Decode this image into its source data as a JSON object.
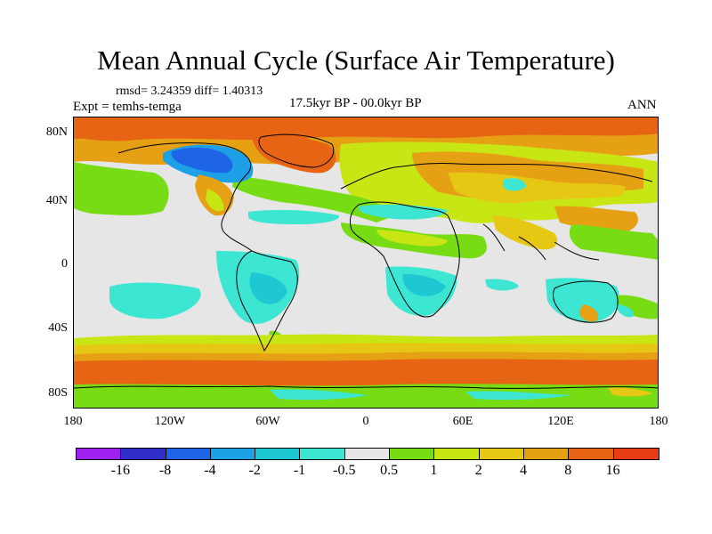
{
  "title": "Mean Annual Cycle (Surface Air Temperature)",
  "stats": "rmsd= 3.24359 diff= 1.40313",
  "experiment": "Expt = temhs-temga",
  "period": "17.5kyr BP - 00.0kyr BP",
  "season": "ANN",
  "map": {
    "lat_labels": [
      "80N",
      "40N",
      "0",
      "40S",
      "80S"
    ],
    "lon_labels": [
      "180",
      "120W",
      "60W",
      "0",
      "60E",
      "120E",
      "180"
    ]
  },
  "colorbar": {
    "colors": [
      "#a020f0",
      "#3030c8",
      "#1e64e6",
      "#1ea0e6",
      "#1ec8d2",
      "#3ce6d2",
      "#e6e6e6",
      "#78dc14",
      "#c8e614",
      "#e6c814",
      "#e6a014",
      "#e66414",
      "#e63c14"
    ],
    "labels": [
      "-16",
      "-8",
      "-4",
      "-2",
      "-1",
      "-0.5",
      "0.5",
      "1",
      "2",
      "4",
      "8",
      "16"
    ]
  },
  "palette": {
    "neutral": "#e6e6e6",
    "light_green": "#78dc14",
    "yellow_green": "#c8e614",
    "yellow": "#e6c814",
    "orange": "#e6a014",
    "dark_orange": "#e66414",
    "cyan": "#3ce6d2",
    "cyan2": "#1ec8d2",
    "blue": "#1ea0e6",
    "deep_blue": "#1e64e6"
  }
}
